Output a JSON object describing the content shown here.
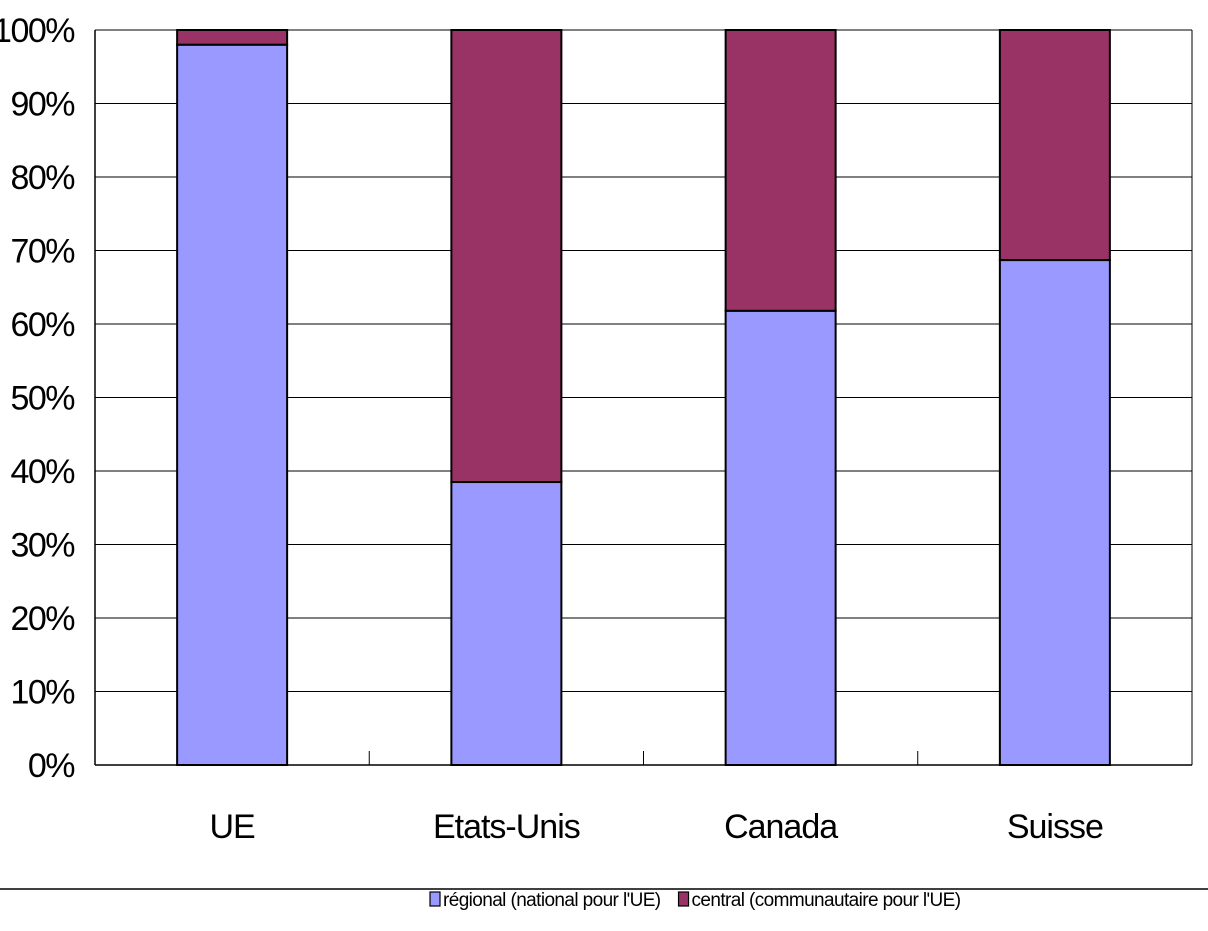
{
  "chart_data": {
    "type": "bar",
    "stacked": true,
    "percent_scale": true,
    "categories": [
      "UE",
      "Etats-Unis",
      "Canada",
      "Suisse"
    ],
    "series": [
      {
        "name": "régional (national pour l'UE)",
        "color": "#9999ff",
        "values": [
          98,
          38.5,
          61.8,
          68.7
        ]
      },
      {
        "name": "central (communautaire pour l'UE)",
        "color": "#993366",
        "values": [
          2,
          61.5,
          38.2,
          31.3
        ]
      }
    ],
    "y_ticks": [
      "0%",
      "10%",
      "20%",
      "30%",
      "40%",
      "50%",
      "60%",
      "70%",
      "80%",
      "90%",
      "100%"
    ],
    "ylim": [
      0,
      100
    ],
    "grid": true,
    "legend_position": "bottom"
  }
}
